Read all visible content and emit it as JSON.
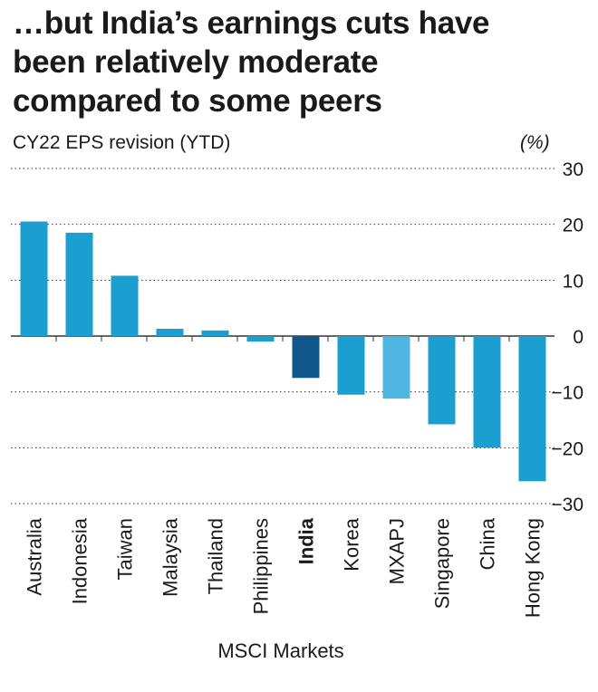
{
  "title_lines": [
    "…but India’s earnings cuts have",
    "been relatively moderate",
    "compared to some peers"
  ],
  "subtitle": "CY22 EPS revision (YTD)",
  "unit_label": "(%)",
  "x_axis_title": "MSCI Markets",
  "colors": {
    "default_bar": "#1a9fd0",
    "highlight_bar": "#10588c",
    "aggregate_bar": "#4fb6e2",
    "grid": "#333333",
    "text": "#1a1a1a"
  },
  "chart_data": {
    "type": "bar",
    "title": "…but India’s earnings cuts have been relatively moderate compared to some peers",
    "ylabel": "CY22 EPS revision (YTD) (%)",
    "xlabel": "MSCI Markets",
    "ylim": [
      -30,
      30
    ],
    "yticks": [
      30,
      20,
      10,
      0,
      -10,
      -20,
      -30
    ],
    "grid": "horizontal dotted",
    "categories": [
      "Australia",
      "Indonesia",
      "Taiwan",
      "Malaysia",
      "Thailand",
      "Philippines",
      "India",
      "Korea",
      "MXAPJ",
      "Singapore",
      "China",
      "Hong Kong"
    ],
    "values": [
      20.5,
      18.5,
      10.8,
      1.3,
      1.0,
      -1.0,
      -7.5,
      -10.5,
      -11.2,
      -15.8,
      -20.0,
      -26.0
    ],
    "highlight": "India",
    "aggregate": "MXAPJ"
  }
}
